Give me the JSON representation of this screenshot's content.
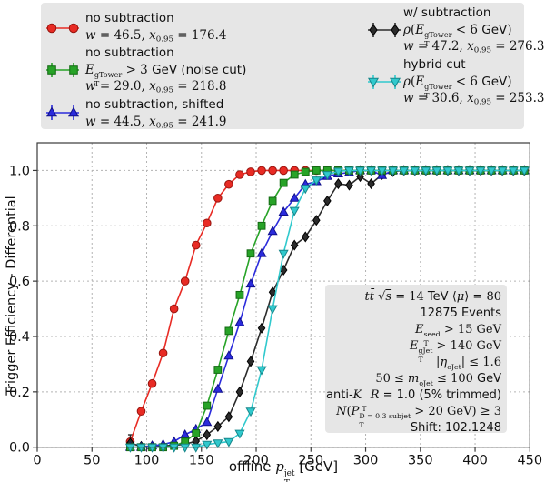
{
  "chart_data": {
    "type": "line",
    "title": "",
    "ylabel": "Trigger Efficiency - Differential",
    "xlabel_segments": [
      {
        "t": "offline "
      },
      {
        "base": "p",
        "i": true,
        "sup": "jet",
        "sub": "T"
      },
      {
        "t": " [GeV]"
      }
    ],
    "xlim": [
      0,
      450
    ],
    "ylim": [
      0,
      1.1
    ],
    "xticks": [
      0,
      50,
      100,
      150,
      200,
      250,
      300,
      350,
      400,
      450
    ],
    "yticks": [
      0.0,
      0.2,
      0.4,
      0.6,
      0.8,
      1.0
    ],
    "grid": true,
    "x": [
      85,
      95,
      105,
      115,
      125,
      135,
      145,
      155,
      165,
      175,
      185,
      195,
      205,
      215,
      225,
      235,
      245,
      255,
      265,
      275,
      285,
      295,
      305,
      315,
      325,
      335,
      345,
      355,
      365,
      375,
      385,
      395,
      405,
      415,
      425,
      435,
      445
    ],
    "series": [
      {
        "name": "no subtraction",
        "w": 46.5,
        "x095": 176.4,
        "color": "#e82b24",
        "edge": "#98150f",
        "marker": "circle",
        "values": [
          0.02,
          0.13,
          0.23,
          0.34,
          0.5,
          0.6,
          0.73,
          0.81,
          0.9,
          0.95,
          0.985,
          0.995,
          1,
          1,
          1,
          1,
          1,
          1,
          1,
          1,
          1,
          1,
          1,
          1,
          1,
          1,
          1,
          1,
          1,
          1,
          1,
          1,
          1,
          1,
          1,
          1,
          1
        ]
      },
      {
        "name": "no subtraction, E_T gTower > 3 GeV (noise cut)",
        "w": 29.0,
        "x095": 218.8,
        "color": "#27a327",
        "edge": "#146914",
        "marker": "square",
        "values": [
          0,
          0,
          0,
          0,
          0.005,
          0.02,
          0.05,
          0.15,
          0.28,
          0.42,
          0.55,
          0.7,
          0.8,
          0.89,
          0.955,
          0.985,
          0.995,
          1,
          1,
          1,
          1,
          1,
          1,
          1,
          1,
          1,
          1,
          1,
          1,
          1,
          1,
          1,
          1,
          1,
          1,
          1,
          1
        ]
      },
      {
        "name": "no subtraction, shifted",
        "w": 44.5,
        "x095": 241.9,
        "color": "#2b2bdc",
        "edge": "#10108c",
        "marker": "triangle-up",
        "values": [
          0,
          0,
          0.005,
          0.01,
          0.02,
          0.045,
          0.065,
          0.09,
          0.21,
          0.33,
          0.45,
          0.59,
          0.7,
          0.78,
          0.85,
          0.9,
          0.95,
          0.96,
          0.979,
          0.988,
          0.993,
          1,
          1,
          0.982,
          1,
          1,
          1,
          1,
          1,
          1,
          1,
          1,
          1,
          1,
          1,
          1,
          1
        ]
      },
      {
        "name": "w/ subtraction, rho(E_T gTower < 6 GeV)",
        "w": 47.2,
        "x095": 276.3,
        "color": "#2b2b2b",
        "edge": "#000000",
        "marker": "diamond",
        "values": [
          0.015,
          0.003,
          0.004,
          0.005,
          0.007,
          0.011,
          0.022,
          0.045,
          0.075,
          0.11,
          0.2,
          0.31,
          0.43,
          0.56,
          0.64,
          0.73,
          0.76,
          0.82,
          0.89,
          0.952,
          0.947,
          0.978,
          0.952,
          0.985,
          0.996,
          1,
          1,
          1,
          1,
          1,
          1,
          1,
          1,
          1,
          1,
          1,
          1
        ]
      },
      {
        "name": "hybrid cut, rho(E_T gTower < 6 GeV)",
        "w": 30.6,
        "x095": 253.3,
        "color": "#30c9cd",
        "edge": "#17868a",
        "marker": "triangle-down",
        "values": [
          0,
          0,
          0,
          0,
          0,
          0,
          0,
          0.01,
          0.015,
          0.02,
          0.05,
          0.13,
          0.28,
          0.5,
          0.7,
          0.855,
          0.935,
          0.965,
          0.985,
          0.997,
          1,
          1,
          1,
          1,
          1,
          1,
          1,
          1,
          1,
          1,
          1,
          1,
          1,
          1,
          1,
          1,
          1
        ]
      }
    ],
    "errorbar": {
      "x": 85,
      "y_low": 0.0,
      "y_high": 0.045,
      "color": "#2b2b2b"
    },
    "legend_position": "top",
    "colors": {
      "grid": "#b3b3b3",
      "frame": "#3a3a3a",
      "box_bg": "#e6e6e6"
    }
  },
  "legend": {
    "entries": [
      {
        "marker": "circle",
        "color": "#e82b24",
        "edge": "#98150f",
        "caps": false,
        "lines": [
          [
            {
              "t": "no subtraction"
            }
          ],
          [
            {
              "t": "w",
              "i": true
            },
            {
              "t": " = 46.5, ",
              "r": true
            },
            {
              "t": "x",
              "i": true
            },
            {
              "t": "0.95",
              "sub": true
            },
            {
              "t": " = 176.4",
              "r": true
            }
          ]
        ]
      },
      {
        "marker": "square",
        "color": "#27a327",
        "edge": "#146914",
        "caps": true,
        "lines": [
          [
            {
              "t": "no subtraction"
            }
          ],
          [
            {
              "base": "E",
              "i": true,
              "sup": "gTower",
              "sub": "T"
            },
            {
              "t": " > 3 ",
              "r": true
            },
            {
              "t": "GeV (noise cut)"
            }
          ],
          [
            {
              "t": "w",
              "i": true
            },
            {
              "t": " = 29.0, ",
              "r": true
            },
            {
              "t": "x",
              "i": true
            },
            {
              "t": "0.95",
              "sub": true
            },
            {
              "t": " = 218.8",
              "r": true
            }
          ]
        ]
      },
      {
        "marker": "triangle-up",
        "color": "#2b2bdc",
        "edge": "#10108c",
        "caps": true,
        "lines": [
          [
            {
              "t": "no subtraction, shifted"
            }
          ],
          [
            {
              "t": "w",
              "i": true
            },
            {
              "t": " = 44.5, ",
              "r": true
            },
            {
              "t": "x",
              "i": true
            },
            {
              "t": "0.95",
              "sub": true
            },
            {
              "t": " = 241.9",
              "r": true
            }
          ]
        ]
      },
      {
        "marker": "diamond",
        "color": "#2b2b2b",
        "edge": "#000000",
        "caps": true,
        "lines": [
          [
            {
              "t": "w/ subtraction"
            }
          ],
          [
            {
              "t": "ρ",
              "i": true
            },
            {
              "t": "(",
              "r": true
            },
            {
              "base": "E",
              "i": true,
              "sup": "gTower",
              "sub": "T"
            },
            {
              "t": " < 6 ",
              "r": true
            },
            {
              "t": "GeV"
            },
            {
              "t": ")",
              "r": true
            }
          ],
          [
            {
              "t": "w",
              "i": true
            },
            {
              "t": " = 47.2, ",
              "r": true
            },
            {
              "t": "x",
              "i": true
            },
            {
              "t": "0.95",
              "sub": true
            },
            {
              "t": " = 276.3",
              "r": true
            }
          ]
        ]
      },
      {
        "marker": "triangle-down",
        "color": "#30c9cd",
        "edge": "#17868a",
        "caps": true,
        "lines": [
          [
            {
              "t": "hybrid cut"
            }
          ],
          [
            {
              "t": "ρ",
              "i": true
            },
            {
              "t": "(",
              "r": true
            },
            {
              "base": "E",
              "i": true,
              "sup": "gTower",
              "sub": "T"
            },
            {
              "t": " < 6 ",
              "r": true
            },
            {
              "t": "GeV"
            },
            {
              "t": ")",
              "r": true
            }
          ],
          [
            {
              "t": "w",
              "i": true
            },
            {
              "t": " = 30.6, ",
              "r": true
            },
            {
              "t": "x",
              "i": true
            },
            {
              "t": "0.95",
              "sub": true
            },
            {
              "t": " = 253.3",
              "r": true
            }
          ]
        ]
      }
    ]
  },
  "annotation": {
    "lines": [
      [
        {
          "t": "tt̄",
          "i": true
        },
        {
          "t": " ",
          "r": true
        },
        {
          "t": "√",
          "r": true
        },
        {
          "t": "s",
          "i": true,
          "ol": true
        },
        {
          "t": " = 14 ",
          "r": true
        },
        {
          "t": "TeV "
        },
        {
          "t": "⟨",
          "r": true
        },
        {
          "t": "μ",
          "i": true
        },
        {
          "t": "⟩",
          "r": true
        },
        {
          "t": " = 80",
          "r": true
        }
      ],
      [
        {
          "t": "12875 Events"
        }
      ],
      [
        {
          "base": "E",
          "i": true,
          "sup": "seed",
          "sub": "T"
        },
        {
          "t": " > 15 ",
          "r": true
        },
        {
          "t": "GeV",
          "r": true
        }
      ],
      [
        {
          "base": "E",
          "i": true,
          "sup": "gJet",
          "sub": "T"
        },
        {
          "t": " > 140 ",
          "r": true
        },
        {
          "t": "GeV",
          "r": true
        }
      ],
      [
        {
          "t": "|",
          "r": true
        },
        {
          "base": "η",
          "i": true,
          "sup": "oJet",
          "sub": ""
        },
        {
          "t": "| ≤ 1.6",
          "r": true
        }
      ],
      [
        {
          "t": "50 ≤ ",
          "r": true
        },
        {
          "base": "m",
          "i": true,
          "sup": "oJet",
          "sub": ""
        },
        {
          "t": " ≤ 100 ",
          "r": true
        },
        {
          "t": "GeV"
        }
      ],
      [
        {
          "t": "anti-"
        },
        {
          "base": "K",
          "i": true,
          "sup": "",
          "sub": "T"
        },
        {
          "t": " ",
          "r": true
        },
        {
          "t": "R",
          "i": true
        },
        {
          "t": " = 1.0 (5% trimmed)"
        }
      ],
      [
        {
          "t": "N",
          "i": true
        },
        {
          "t": "(",
          "r": true
        },
        {
          "base": "P",
          "i": true,
          "sup": "D = 0.3 subjet",
          "sub": "T"
        },
        {
          "t": " > 20 ",
          "r": true
        },
        {
          "t": "GeV",
          "r": true
        },
        {
          "t": ") ≥ 3",
          "r": true
        }
      ],
      [
        {
          "t": "Shift: 102.1248"
        }
      ]
    ]
  }
}
